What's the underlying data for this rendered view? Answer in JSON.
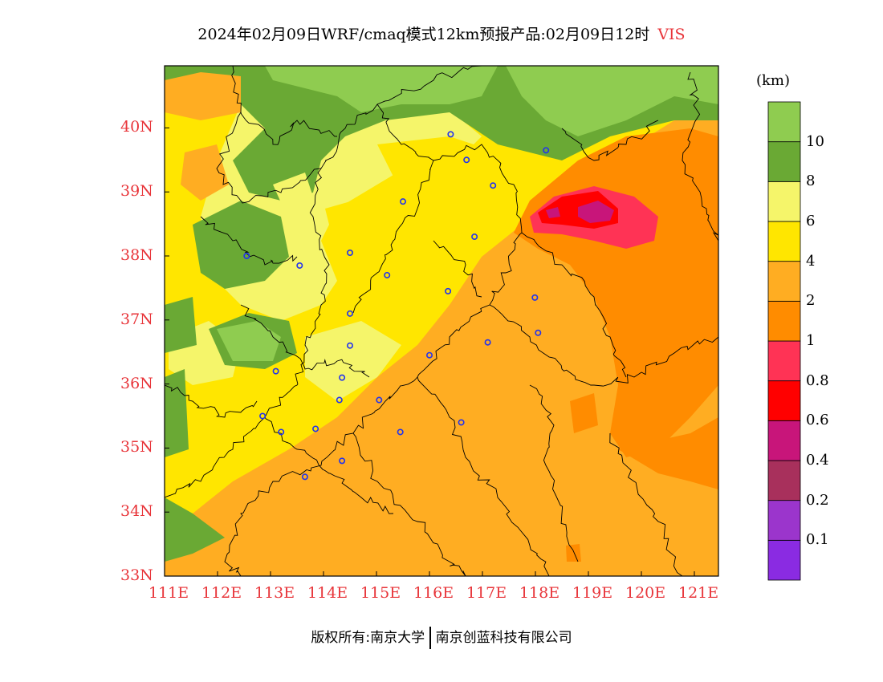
{
  "title": {
    "main": "2024年02月09日WRF/cmaq模式12km预报产品:02月09日12时",
    "variable": "VIS"
  },
  "unit": "(km)",
  "map": {
    "x_ticks": [
      "111E",
      "112E",
      "113E",
      "114E",
      "115E",
      "116E",
      "117E",
      "118E",
      "119E",
      "120E",
      "121E"
    ],
    "y_ticks": [
      "33N",
      "34N",
      "35N",
      "36N",
      "37N",
      "38N",
      "39N",
      "40N"
    ]
  },
  "colorbar": {
    "colors": [
      "#8a2be2",
      "#9b35cc",
      "#a8305c",
      "#c8157a",
      "#ff0000",
      "#ff3355",
      "#ff8c00",
      "#ffad22",
      "#ffe600",
      "#f5f56a",
      "#6aa934",
      "#8fcc50"
    ],
    "labels": [
      "0.1",
      "0.2",
      "0.4",
      "0.6",
      "0.8",
      "1",
      "2",
      "4",
      "6",
      "8",
      "10"
    ]
  },
  "cities": [
    {
      "lon": 116.4,
      "lat": 39.9
    },
    {
      "lon": 116.7,
      "lat": 39.5
    },
    {
      "lon": 117.2,
      "lat": 39.1
    },
    {
      "lon": 118.2,
      "lat": 39.65
    },
    {
      "lon": 115.5,
      "lat": 38.85
    },
    {
      "lon": 116.85,
      "lat": 38.3
    },
    {
      "lon": 112.55,
      "lat": 38.0
    },
    {
      "lon": 113.55,
      "lat": 37.85
    },
    {
      "lon": 114.5,
      "lat": 38.05
    },
    {
      "lon": 115.2,
      "lat": 37.7
    },
    {
      "lon": 116.35,
      "lat": 37.45
    },
    {
      "lon": 117.99,
      "lat": 37.35
    },
    {
      "lon": 114.5,
      "lat": 37.1
    },
    {
      "lon": 114.5,
      "lat": 36.6
    },
    {
      "lon": 116.0,
      "lat": 36.45
    },
    {
      "lon": 117.1,
      "lat": 36.65
    },
    {
      "lon": 118.05,
      "lat": 36.8
    },
    {
      "lon": 113.1,
      "lat": 36.2
    },
    {
      "lon": 114.35,
      "lat": 36.1
    },
    {
      "lon": 114.3,
      "lat": 35.75
    },
    {
      "lon": 115.05,
      "lat": 35.75
    },
    {
      "lon": 112.85,
      "lat": 35.5
    },
    {
      "lon": 113.2,
      "lat": 35.25
    },
    {
      "lon": 113.85,
      "lat": 35.3
    },
    {
      "lon": 115.45,
      "lat": 35.25
    },
    {
      "lon": 116.6,
      "lat": 35.4
    },
    {
      "lon": 114.35,
      "lat": 34.8
    },
    {
      "lon": 113.65,
      "lat": 34.55
    }
  ],
  "footer": {
    "left": "版权所有:南京大学",
    "right": "南京创蓝科技有限公司"
  }
}
